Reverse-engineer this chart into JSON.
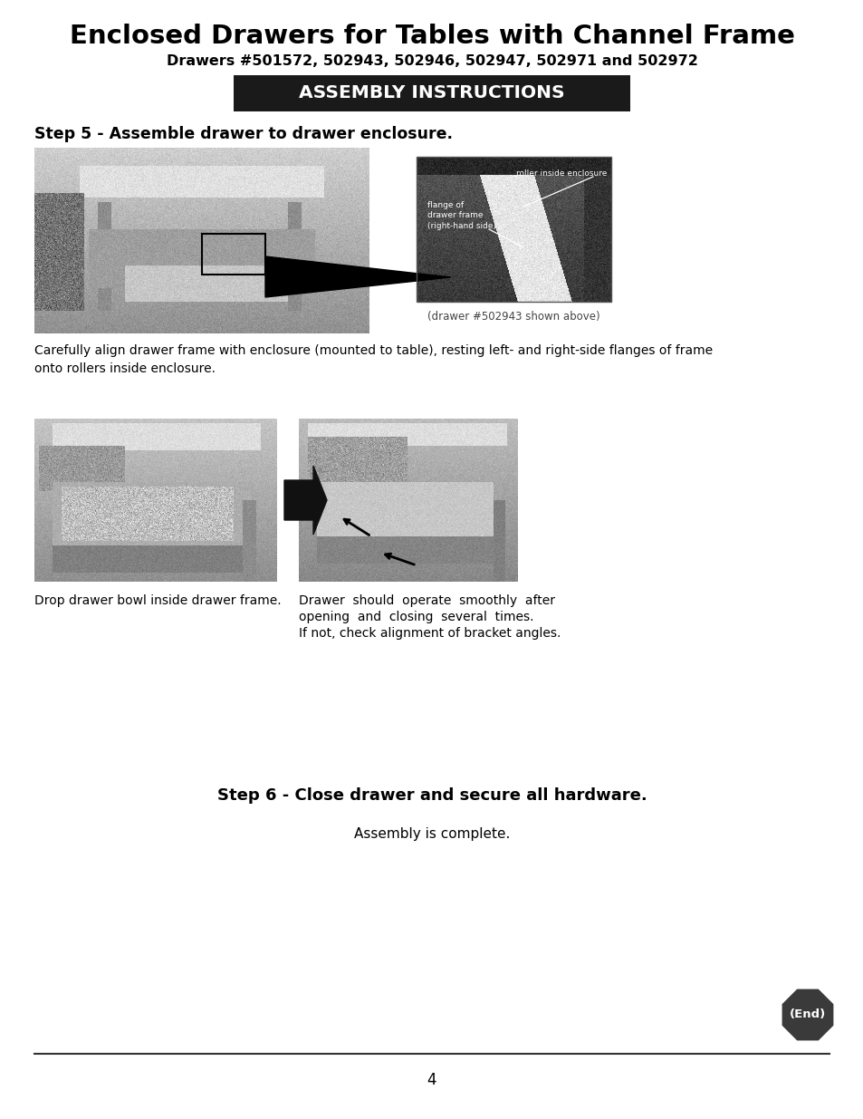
{
  "title": "Enclosed Drawers for Tables with Channel Frame",
  "subtitle": "Drawers #501572, 502943, 502946, 502947, 502971 and 502972",
  "banner_text": "ASSEMBLY INSTRUCTIONS",
  "banner_bg": "#1a1a1a",
  "banner_fg": "#ffffff",
  "step5_heading": "Step 5 - Assemble drawer to drawer enclosure.",
  "step5_body": "Carefully align drawer frame with enclosure (mounted to table), resting left- and right-side flanges of frame\nonto rollers inside enclosure.",
  "img1_caption": "(drawer #502943 shown above)",
  "img2_caption": "Drop drawer bowl inside drawer frame.",
  "img3_caption_line1": "Drawer  should  operate  smoothly  after",
  "img3_caption_line2": "opening  and  closing  several  times.",
  "img3_caption_line3": "If not, check alignment of bracket angles.",
  "step6_heading": "Step 6 - Close drawer and secure all hardware.",
  "step6_body": "Assembly is complete.",
  "page_number": "4",
  "end_badge_text": "(End)",
  "bg_color": "#ffffff",
  "text_color": "#000000"
}
